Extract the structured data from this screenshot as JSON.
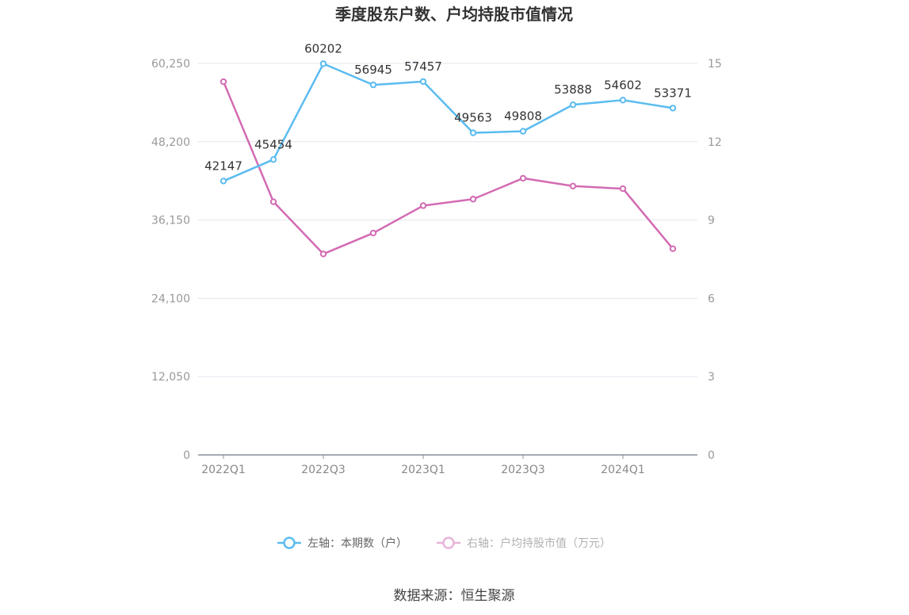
{
  "chart_data": {
    "type": "line",
    "title": "季度股东户数、户均持股市值情况",
    "categories": [
      "2022Q1",
      "2022Q2",
      "2022Q3",
      "2022Q4",
      "2023Q1",
      "2023Q2",
      "2023Q3",
      "2023Q4",
      "2024Q1",
      "2024Q2"
    ],
    "x_tick_labels": [
      "2022Q1",
      "",
      "2022Q3",
      "",
      "2023Q1",
      "",
      "2023Q3",
      "",
      "2024Q1",
      ""
    ],
    "left_axis": {
      "min": 0,
      "max": 60250,
      "ticks": [
        "0",
        "12,050",
        "24,100",
        "36,150",
        "48,200",
        "60,250"
      ]
    },
    "right_axis": {
      "min": 0,
      "max": 15,
      "ticks": [
        "0",
        "3",
        "6",
        "9",
        "12",
        "15"
      ]
    },
    "series": [
      {
        "name": "左轴：本期数（户）",
        "axis": "left",
        "color": "#5bbcf0",
        "values": [
          42147,
          45454,
          60202,
          56945,
          57457,
          49563,
          49808,
          53888,
          54602,
          53371
        ],
        "labels": [
          "42147",
          "45454",
          "60202",
          "56945",
          "57457",
          "49563",
          "49808",
          "53888",
          "54602",
          "53371"
        ]
      },
      {
        "name": "右轴：户均持股市值（万元）",
        "axis": "right",
        "color": "#d36bb3",
        "values": [
          14.3,
          9.7,
          7.7,
          8.5,
          9.55,
          9.8,
          10.6,
          10.3,
          10.2,
          7.9
        ]
      }
    ],
    "grid": true,
    "legend_position": "bottom"
  },
  "footer": {
    "source": "数据来源：恒生聚源"
  }
}
